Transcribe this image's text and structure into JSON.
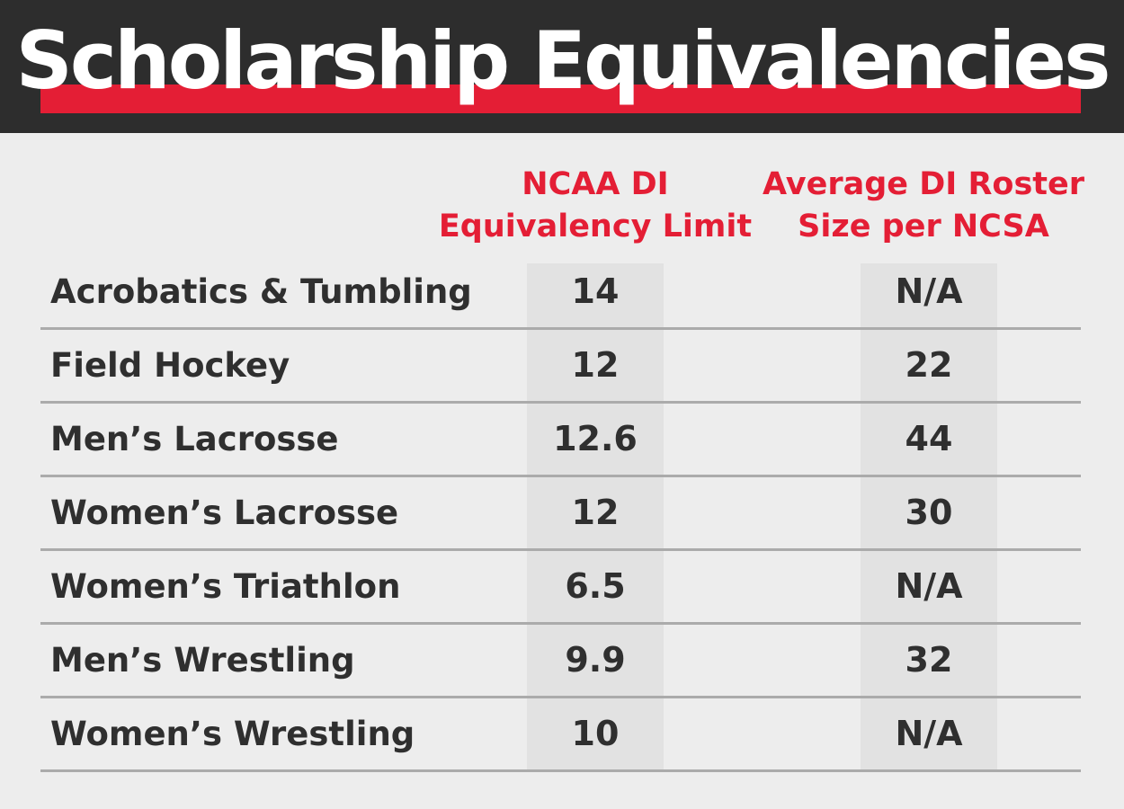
{
  "chart_data": {
    "type": "table",
    "title": "Scholarship Equivalencies",
    "columns": [
      "",
      "NCAA DI Equivalency Limit",
      "Average DI Roster Size per NCSA"
    ],
    "header": {
      "col1_line1": "NCAA DI",
      "col1_line2": "Equivalency Limit",
      "col2_line1": "Average DI Roster",
      "col2_line2": "Size per NCSA"
    },
    "rows": [
      {
        "sport": "Acrobatics & Tumbling",
        "limit": "14",
        "roster": "N/A"
      },
      {
        "sport": "Field Hockey",
        "limit": "12",
        "roster": "22"
      },
      {
        "sport": "Men’s Lacrosse",
        "limit": "12.6",
        "roster": "44"
      },
      {
        "sport": "Women’s Lacrosse",
        "limit": "12",
        "roster": "30"
      },
      {
        "sport": "Women’s Triathlon",
        "limit": "6.5",
        "roster": "N/A"
      },
      {
        "sport": "Men’s Wrestling",
        "limit": "9.9",
        "roster": "32"
      },
      {
        "sport": "Women’s Wrestling",
        "limit": "10",
        "roster": "N/A"
      }
    ]
  },
  "colors": {
    "header_bg": "#2d2d2d",
    "accent": "#e41e35",
    "page_bg": "#ededed",
    "column_shade": "#e2e2e2",
    "text": "#2f2f2f",
    "rule": "#ababab"
  }
}
